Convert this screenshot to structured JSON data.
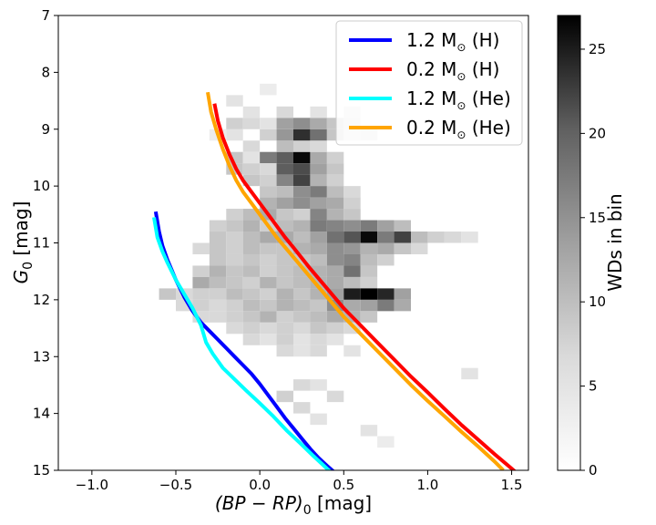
{
  "chart_data": {
    "type": "heatmap",
    "xlabel_main": "(BP − RP)",
    "xlabel_sub": "0",
    "xlabel_unit": " [mag]",
    "ylabel_main": "G",
    "ylabel_sub": "0",
    "ylabel_unit": " [mag]",
    "xlim": [
      -1.2,
      1.6
    ],
    "ylim": [
      15,
      7
    ],
    "x_ticks": [
      -1.0,
      -0.5,
      0.0,
      0.5,
      1.0,
      1.5
    ],
    "x_tick_labels": [
      "−1.0",
      "−0.5",
      "0.0",
      "0.5",
      "1.0",
      "1.5"
    ],
    "y_ticks": [
      7,
      8,
      9,
      10,
      11,
      12,
      13,
      14,
      15
    ],
    "y_tick_labels": [
      "7",
      "8",
      "9",
      "10",
      "11",
      "12",
      "13",
      "14",
      "15"
    ],
    "colorbar": {
      "label": "WDs in bin",
      "range": [
        0,
        27
      ],
      "ticks": [
        0,
        5,
        10,
        15,
        20,
        25
      ],
      "tick_labels": [
        "0",
        "5",
        "10",
        "15",
        "20",
        "25"
      ],
      "colormap": "Greys"
    },
    "bin_size": {
      "x": 0.1,
      "y": 0.2
    },
    "bins": [
      [
        -0.15,
        9.5,
        6
      ],
      [
        -0.05,
        9.5,
        3
      ],
      [
        0.05,
        9.5,
        14
      ],
      [
        0.15,
        9.5,
        17
      ],
      [
        0.25,
        9.5,
        26
      ],
      [
        0.35,
        9.5,
        9
      ],
      [
        0.45,
        9.5,
        5
      ],
      [
        -0.05,
        9.3,
        4
      ],
      [
        0.15,
        9.3,
        7
      ],
      [
        0.25,
        9.3,
        5
      ],
      [
        0.35,
        9.3,
        4
      ],
      [
        0.05,
        9.1,
        5
      ],
      [
        0.15,
        9.1,
        11
      ],
      [
        0.25,
        9.1,
        22
      ],
      [
        0.35,
        9.1,
        15
      ],
      [
        0.45,
        9.1,
        6
      ],
      [
        0.55,
        9.1,
        3
      ],
      [
        0.65,
        9.1,
        4
      ],
      [
        -0.15,
        9.1,
        3
      ],
      [
        -0.25,
        9.1,
        2
      ],
      [
        -0.15,
        8.9,
        5
      ],
      [
        -0.05,
        8.9,
        4
      ],
      [
        0.05,
        8.9,
        3
      ],
      [
        0.15,
        8.9,
        10
      ],
      [
        0.25,
        8.9,
        12
      ],
      [
        0.35,
        8.9,
        9
      ],
      [
        0.45,
        8.9,
        6
      ],
      [
        0.55,
        8.9,
        4
      ],
      [
        -0.05,
        8.7,
        3
      ],
      [
        0.15,
        8.7,
        4
      ],
      [
        0.35,
        8.7,
        3
      ],
      [
        0.55,
        8.7,
        3
      ],
      [
        0.05,
        8.3,
        2
      ],
      [
        -0.15,
        8.5,
        3
      ],
      [
        -0.15,
        9.7,
        6
      ],
      [
        -0.05,
        9.7,
        5
      ],
      [
        0.05,
        9.7,
        4
      ],
      [
        0.15,
        9.7,
        17
      ],
      [
        0.25,
        9.7,
        19
      ],
      [
        0.35,
        9.7,
        10
      ],
      [
        0.45,
        9.7,
        6
      ],
      [
        -0.05,
        9.9,
        6
      ],
      [
        0.05,
        9.9,
        5
      ],
      [
        0.15,
        9.9,
        13
      ],
      [
        0.25,
        9.9,
        20
      ],
      [
        0.35,
        9.9,
        8
      ],
      [
        0.45,
        9.9,
        5
      ],
      [
        0.05,
        10.1,
        6
      ],
      [
        0.15,
        10.1,
        7
      ],
      [
        0.25,
        10.1,
        12
      ],
      [
        0.35,
        10.1,
        14
      ],
      [
        0.45,
        10.1,
        7
      ],
      [
        0.55,
        10.1,
        4
      ],
      [
        0.05,
        10.3,
        8
      ],
      [
        0.15,
        10.3,
        10
      ],
      [
        0.25,
        10.3,
        12
      ],
      [
        0.35,
        10.3,
        10
      ],
      [
        0.45,
        10.3,
        9
      ],
      [
        0.55,
        10.3,
        5
      ],
      [
        -0.15,
        10.5,
        5
      ],
      [
        -0.05,
        10.5,
        7
      ],
      [
        0.05,
        10.5,
        9
      ],
      [
        0.15,
        10.5,
        6
      ],
      [
        0.25,
        10.5,
        5
      ],
      [
        0.35,
        10.5,
        13
      ],
      [
        0.45,
        10.5,
        8
      ],
      [
        0.55,
        10.5,
        6
      ],
      [
        -0.25,
        10.7,
        5
      ],
      [
        -0.15,
        10.7,
        6
      ],
      [
        -0.05,
        10.7,
        8
      ],
      [
        0.05,
        10.7,
        5
      ],
      [
        0.15,
        10.7,
        7
      ],
      [
        0.25,
        10.7,
        8
      ],
      [
        0.35,
        10.7,
        14
      ],
      [
        0.45,
        10.7,
        13
      ],
      [
        0.55,
        10.7,
        12
      ],
      [
        0.65,
        10.7,
        14
      ],
      [
        0.75,
        10.7,
        10
      ],
      [
        0.85,
        10.7,
        7
      ],
      [
        -0.25,
        10.9,
        6
      ],
      [
        -0.15,
        10.9,
        5
      ],
      [
        -0.05,
        10.9,
        7
      ],
      [
        0.05,
        10.9,
        9
      ],
      [
        0.15,
        10.9,
        9
      ],
      [
        0.25,
        10.9,
        7
      ],
      [
        0.35,
        10.9,
        10
      ],
      [
        0.45,
        10.9,
        15
      ],
      [
        0.55,
        10.9,
        18
      ],
      [
        0.65,
        10.9,
        26
      ],
      [
        0.75,
        10.9,
        14
      ],
      [
        0.85,
        10.9,
        20
      ],
      [
        0.95,
        10.9,
        7
      ],
      [
        1.05,
        10.9,
        5
      ],
      [
        1.15,
        10.9,
        4
      ],
      [
        1.25,
        10.9,
        3
      ],
      [
        -0.35,
        11.1,
        4
      ],
      [
        -0.25,
        11.1,
        6
      ],
      [
        -0.15,
        11.1,
        5
      ],
      [
        -0.05,
        11.1,
        7
      ],
      [
        0.05,
        11.1,
        6
      ],
      [
        0.15,
        11.1,
        6
      ],
      [
        0.25,
        11.1,
        8
      ],
      [
        0.35,
        11.1,
        9
      ],
      [
        0.45,
        11.1,
        12
      ],
      [
        0.55,
        11.1,
        11
      ],
      [
        0.65,
        11.1,
        8
      ],
      [
        0.75,
        11.1,
        9
      ],
      [
        0.85,
        11.1,
        6
      ],
      [
        0.95,
        11.1,
        4
      ],
      [
        -0.25,
        11.3,
        6
      ],
      [
        -0.15,
        11.3,
        5
      ],
      [
        -0.05,
        11.3,
        6
      ],
      [
        0.05,
        11.3,
        5
      ],
      [
        0.15,
        11.3,
        6
      ],
      [
        0.25,
        11.3,
        6
      ],
      [
        0.35,
        11.3,
        7
      ],
      [
        0.45,
        11.3,
        12
      ],
      [
        0.55,
        11.3,
        13
      ],
      [
        0.65,
        11.3,
        7
      ],
      [
        0.75,
        11.3,
        5
      ],
      [
        -0.35,
        11.5,
        5
      ],
      [
        -0.25,
        11.5,
        8
      ],
      [
        -0.15,
        11.5,
        6
      ],
      [
        -0.05,
        11.5,
        7
      ],
      [
        0.05,
        11.5,
        5
      ],
      [
        0.15,
        11.5,
        6
      ],
      [
        0.25,
        11.5,
        7
      ],
      [
        0.35,
        11.5,
        8
      ],
      [
        0.45,
        11.5,
        9
      ],
      [
        0.55,
        11.5,
        15
      ],
      [
        0.65,
        11.5,
        6
      ],
      [
        -0.35,
        11.7,
        9
      ],
      [
        -0.25,
        11.7,
        7
      ],
      [
        -0.15,
        11.7,
        6
      ],
      [
        -0.05,
        11.7,
        5
      ],
      [
        0.05,
        11.7,
        8
      ],
      [
        0.15,
        11.7,
        6
      ],
      [
        0.25,
        11.7,
        7
      ],
      [
        0.35,
        11.7,
        8
      ],
      [
        0.45,
        11.7,
        9
      ],
      [
        0.55,
        11.7,
        7
      ],
      [
        0.65,
        11.7,
        5
      ],
      [
        -0.55,
        11.9,
        6
      ],
      [
        -0.45,
        11.9,
        4
      ],
      [
        -0.35,
        11.9,
        5
      ],
      [
        -0.25,
        11.9,
        5
      ],
      [
        -0.15,
        11.9,
        7
      ],
      [
        -0.05,
        11.9,
        6
      ],
      [
        0.05,
        11.9,
        5
      ],
      [
        0.15,
        11.9,
        8
      ],
      [
        0.25,
        11.9,
        6
      ],
      [
        0.35,
        11.9,
        8
      ],
      [
        0.45,
        11.9,
        10
      ],
      [
        0.55,
        11.9,
        24
      ],
      [
        0.65,
        11.9,
        27
      ],
      [
        0.75,
        11.9,
        23
      ],
      [
        0.85,
        11.9,
        10
      ],
      [
        -0.45,
        12.1,
        4
      ],
      [
        -0.35,
        12.1,
        5
      ],
      [
        -0.25,
        12.1,
        4
      ],
      [
        -0.15,
        12.1,
        5
      ],
      [
        -0.05,
        12.1,
        7
      ],
      [
        0.05,
        12.1,
        6
      ],
      [
        0.15,
        12.1,
        8
      ],
      [
        0.25,
        12.1,
        7
      ],
      [
        0.35,
        12.1,
        6
      ],
      [
        0.45,
        12.1,
        12
      ],
      [
        0.55,
        12.1,
        9
      ],
      [
        0.65,
        12.1,
        10
      ],
      [
        0.75,
        12.1,
        14
      ],
      [
        0.85,
        12.1,
        9
      ],
      [
        -0.35,
        12.3,
        4
      ],
      [
        -0.25,
        12.3,
        4
      ],
      [
        -0.15,
        12.3,
        5
      ],
      [
        -0.05,
        12.3,
        6
      ],
      [
        0.05,
        12.3,
        8
      ],
      [
        0.15,
        12.3,
        5
      ],
      [
        0.25,
        12.3,
        6
      ],
      [
        0.35,
        12.3,
        7
      ],
      [
        0.45,
        12.3,
        9
      ],
      [
        0.55,
        12.3,
        8
      ],
      [
        0.65,
        12.3,
        6
      ],
      [
        -0.15,
        12.5,
        4
      ],
      [
        -0.05,
        12.5,
        5
      ],
      [
        0.05,
        12.5,
        4
      ],
      [
        0.15,
        12.5,
        5
      ],
      [
        0.25,
        12.5,
        4
      ],
      [
        0.35,
        12.5,
        6
      ],
      [
        0.45,
        12.5,
        5
      ],
      [
        0.55,
        12.5,
        4
      ],
      [
        -0.05,
        12.7,
        4
      ],
      [
        0.05,
        12.7,
        3
      ],
      [
        0.15,
        12.7,
        5
      ],
      [
        0.25,
        12.7,
        3
      ],
      [
        0.35,
        12.7,
        4
      ],
      [
        0.45,
        12.7,
        3
      ],
      [
        0.15,
        12.9,
        4
      ],
      [
        0.25,
        12.9,
        3
      ],
      [
        0.35,
        12.9,
        4
      ],
      [
        0.55,
        12.9,
        3
      ],
      [
        0.25,
        13.5,
        4
      ],
      [
        0.35,
        13.5,
        3
      ],
      [
        0.15,
        13.7,
        5
      ],
      [
        0.45,
        13.7,
        4
      ],
      [
        0.25,
        13.9,
        4
      ],
      [
        0.35,
        14.1,
        3
      ],
      [
        0.65,
        14.3,
        3
      ],
      [
        0.75,
        14.5,
        2
      ],
      [
        1.25,
        13.3,
        3
      ]
    ],
    "series": [
      {
        "name": "1.2 M☉ (H)",
        "label_main": "1.2 M",
        "label_tail": " (H)",
        "color": "#0000ff",
        "x": [
          -0.62,
          -0.6,
          -0.58,
          -0.55,
          -0.5,
          -0.45,
          -0.4,
          -0.35,
          -0.3,
          -0.25,
          -0.2,
          -0.15,
          -0.1,
          -0.05,
          0.0,
          0.05,
          0.1,
          0.15,
          0.2,
          0.25,
          0.3,
          0.35,
          0.4,
          0.45
        ],
        "y": [
          10.45,
          10.8,
          11.05,
          11.3,
          11.65,
          11.95,
          12.2,
          12.4,
          12.55,
          12.7,
          12.85,
          13.0,
          13.15,
          13.3,
          13.48,
          13.68,
          13.88,
          14.08,
          14.26,
          14.44,
          14.62,
          14.78,
          14.92,
          15.05
        ]
      },
      {
        "name": "0.2 M☉ (H)",
        "label_main": "0.2 M",
        "label_tail": " (H)",
        "color": "#ff0000",
        "x": [
          -0.27,
          -0.25,
          -0.22,
          -0.18,
          -0.14,
          -0.1,
          -0.05,
          0.0,
          0.05,
          0.1,
          0.15,
          0.2,
          0.3,
          0.4,
          0.5,
          0.6,
          0.7,
          0.8,
          0.9,
          1.0,
          1.1,
          1.2,
          1.3,
          1.4,
          1.5,
          1.55
        ],
        "y": [
          8.55,
          8.85,
          9.15,
          9.45,
          9.7,
          9.9,
          10.1,
          10.3,
          10.5,
          10.7,
          10.9,
          11.08,
          11.45,
          11.8,
          12.15,
          12.45,
          12.75,
          13.05,
          13.35,
          13.63,
          13.92,
          14.2,
          14.46,
          14.72,
          14.97,
          15.1
        ]
      },
      {
        "name": "1.2 M☉ (He)",
        "label_main": "1.2 M",
        "label_tail": " (He)",
        "color": "#00ffff",
        "x": [
          -0.63,
          -0.61,
          -0.58,
          -0.55,
          -0.5,
          -0.45,
          -0.4,
          -0.35,
          -0.32,
          -0.28,
          -0.22,
          -0.15,
          -0.08,
          0.0,
          0.08,
          0.16,
          0.24,
          0.32,
          0.4,
          0.45
        ],
        "y": [
          10.55,
          10.9,
          11.15,
          11.35,
          11.65,
          11.9,
          12.15,
          12.45,
          12.75,
          12.95,
          13.2,
          13.4,
          13.6,
          13.82,
          14.05,
          14.3,
          14.52,
          14.75,
          14.97,
          15.1
        ]
      },
      {
        "name": "0.2 M☉ (He)",
        "label_main": "0.2 M",
        "label_tail": " (He)",
        "color": "#ffa500",
        "x": [
          -0.31,
          -0.29,
          -0.26,
          -0.22,
          -0.18,
          -0.14,
          -0.1,
          -0.05,
          0.0,
          0.05,
          0.1,
          0.2,
          0.3,
          0.4,
          0.5,
          0.6,
          0.7,
          0.8,
          0.9,
          1.0,
          1.1,
          1.2,
          1.3,
          1.4,
          1.45
        ],
        "y": [
          8.35,
          8.7,
          9.0,
          9.35,
          9.65,
          9.9,
          10.1,
          10.3,
          10.5,
          10.7,
          10.9,
          11.25,
          11.6,
          11.95,
          12.3,
          12.6,
          12.9,
          13.2,
          13.5,
          13.78,
          14.05,
          14.32,
          14.58,
          14.85,
          15.0
        ]
      }
    ]
  }
}
